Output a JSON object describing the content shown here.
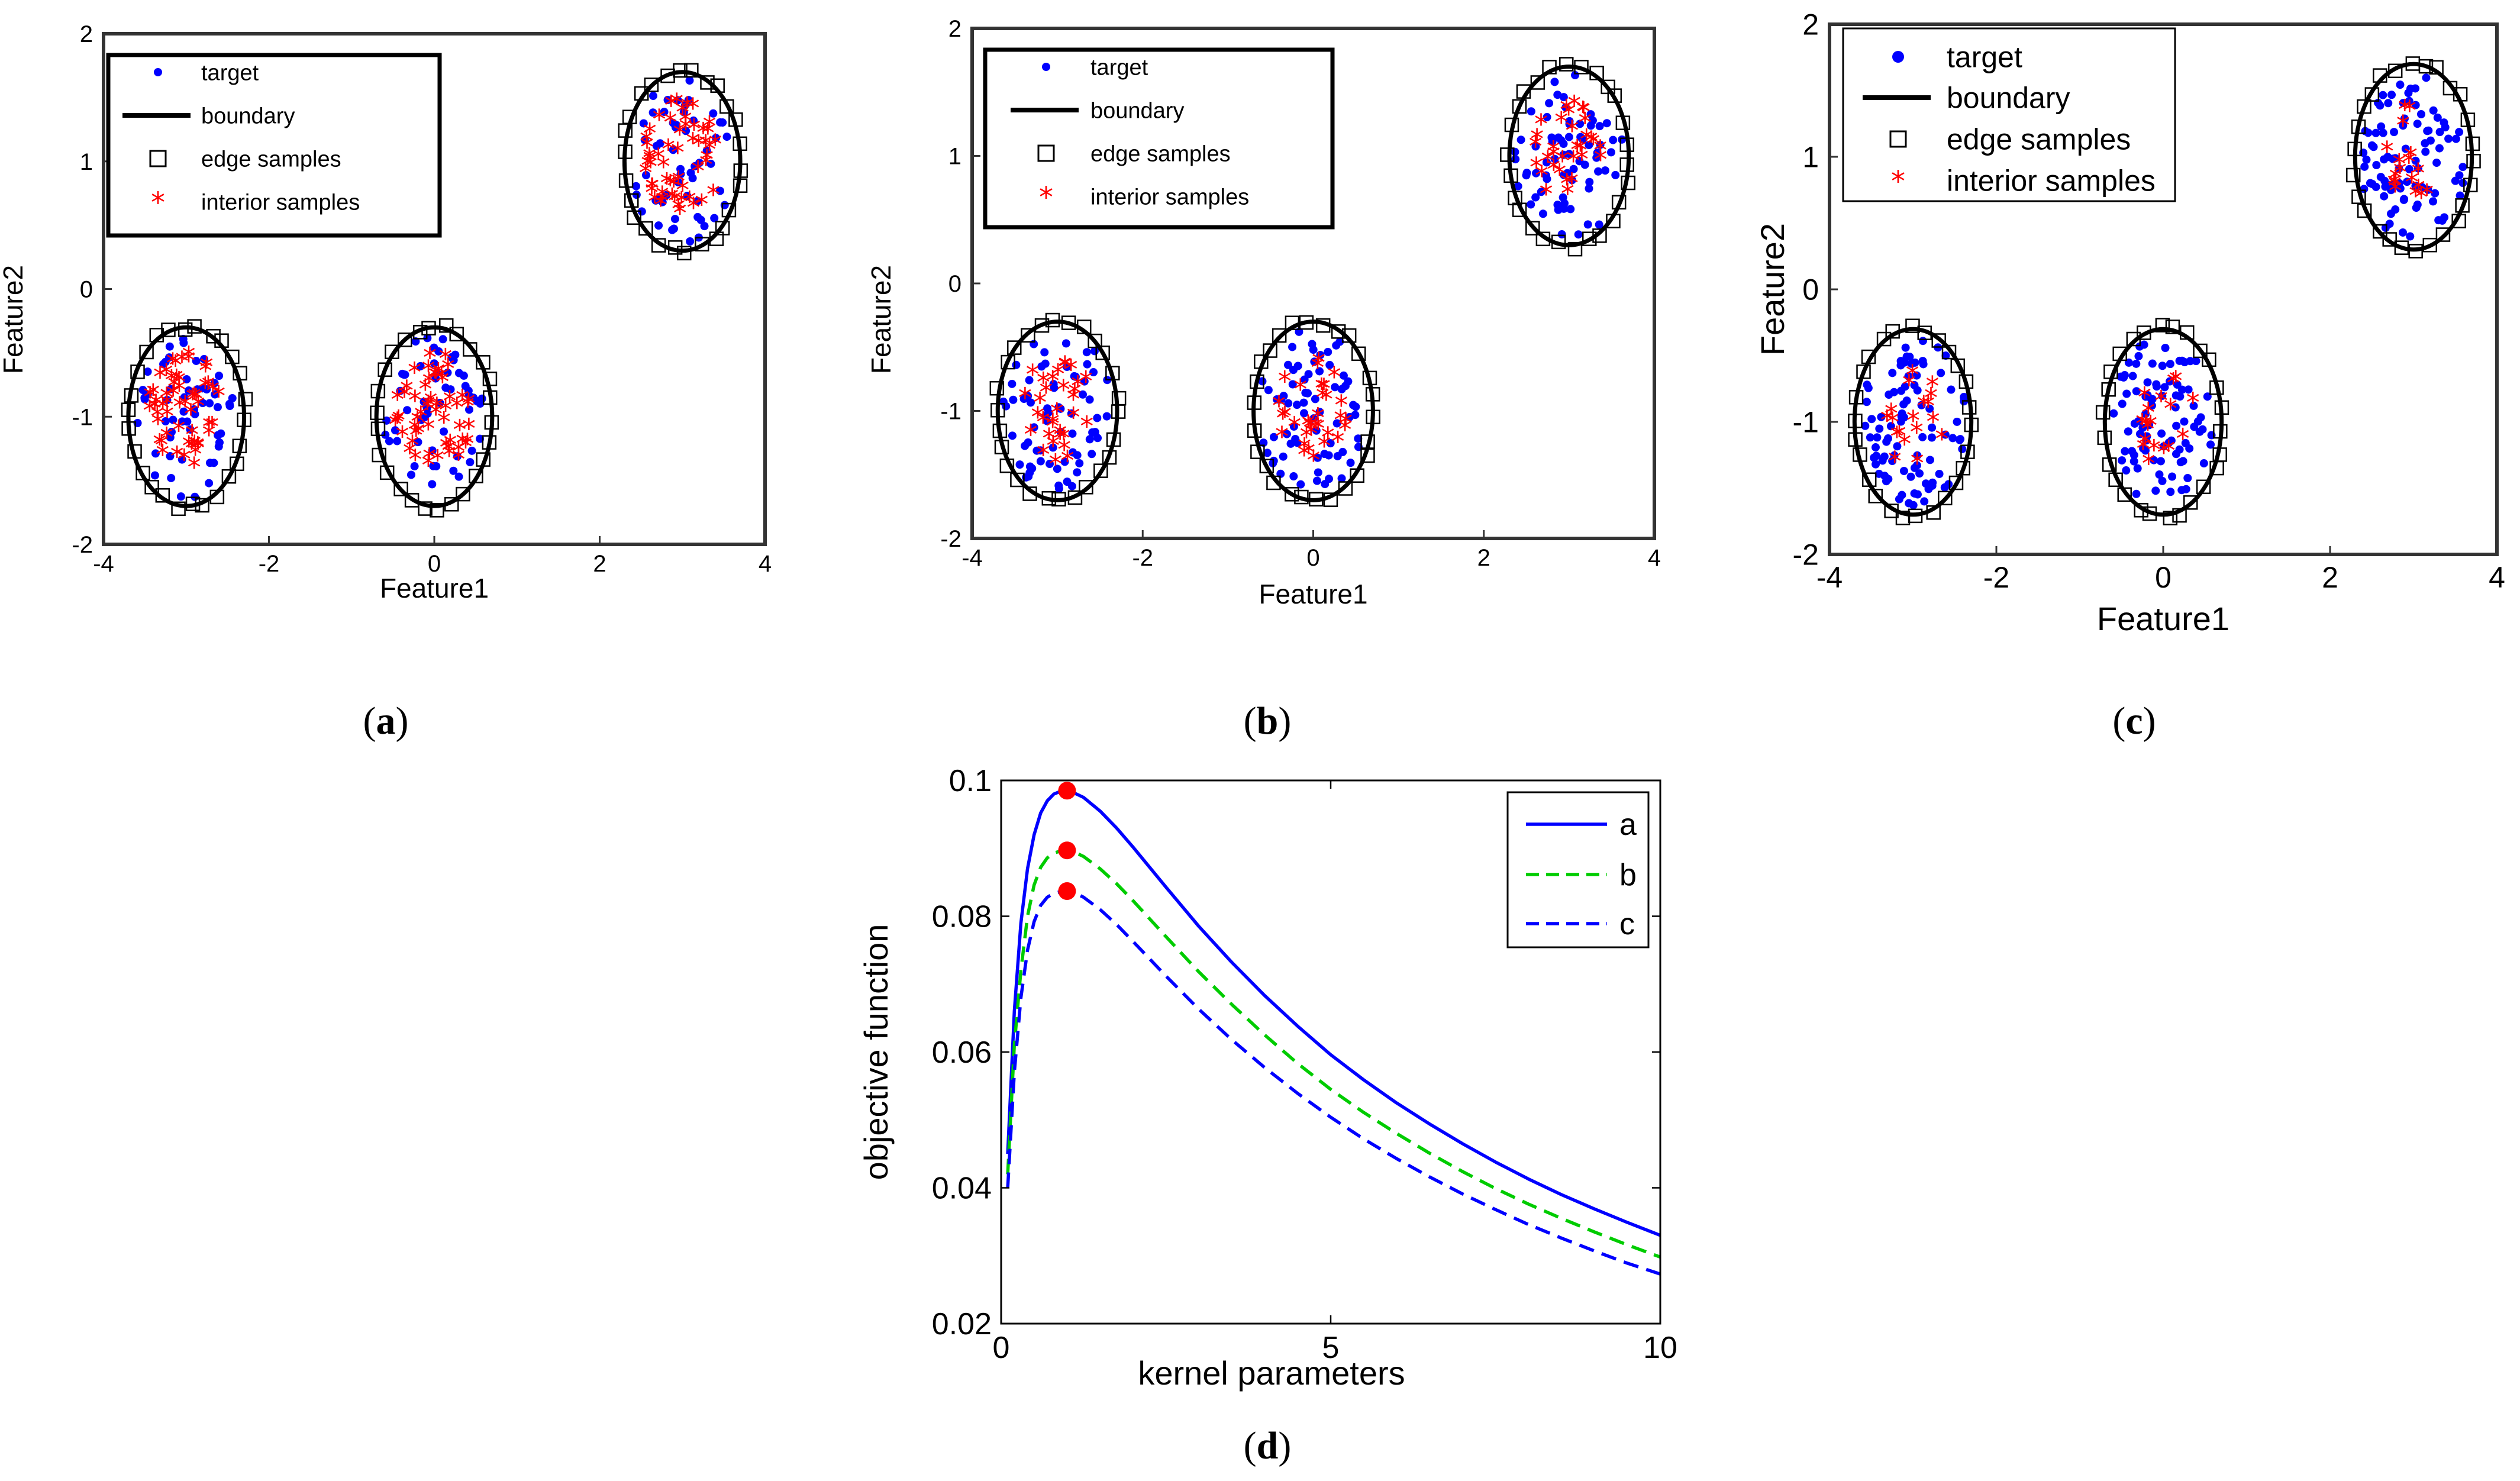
{
  "chart_data": [
    {
      "id": "a",
      "type": "scatter",
      "caption_letter": "a",
      "xlabel": "Feature1",
      "ylabel": "Feature2",
      "xlim": [
        -4,
        4
      ],
      "ylim": [
        -2,
        2
      ],
      "xticks": [
        -4,
        -2,
        0,
        2,
        4
      ],
      "yticks": [
        -2,
        -1,
        0,
        1,
        2
      ],
      "xtick_labels": [
        "-4",
        "-2",
        "0",
        "2",
        "4"
      ],
      "ytick_labels": [
        "-2",
        "-1",
        "0",
        "1",
        "2"
      ],
      "legend": [
        "target",
        "boundary",
        "edge samples",
        "interior samples"
      ],
      "legend_position": "top-left",
      "clusters": [
        {
          "cx": -3,
          "cy": -1,
          "rx": 0.7,
          "ry": 0.7
        },
        {
          "cx": 0,
          "cy": -1,
          "rx": 0.7,
          "ry": 0.7
        },
        {
          "cx": 3,
          "cy": 1,
          "rx": 0.7,
          "ry": 0.7
        }
      ],
      "n_target_per_cluster": 55,
      "n_edge_per_cluster": 26,
      "n_interior_per_cluster": 55,
      "interior_spread": 0.68
    },
    {
      "id": "b",
      "type": "scatter",
      "caption_letter": "b",
      "xlabel": "Feature1",
      "ylabel": "Feature2",
      "xlim": [
        -4,
        4
      ],
      "ylim": [
        -2,
        2
      ],
      "xticks": [
        -4,
        -2,
        0,
        2,
        4
      ],
      "yticks": [
        -2,
        -1,
        0,
        1,
        2
      ],
      "xtick_labels": [
        "-4",
        "-2",
        "0",
        "2",
        "4"
      ],
      "ytick_labels": [
        "-2",
        "-1",
        "0",
        "1",
        "2"
      ],
      "legend": [
        "target",
        "boundary",
        "edge samples",
        "interior samples"
      ],
      "legend_position": "top-left",
      "clusters": [
        {
          "cx": -3,
          "cy": -1,
          "rx": 0.7,
          "ry": 0.7
        },
        {
          "cx": 0,
          "cy": -1,
          "rx": 0.7,
          "ry": 0.7
        },
        {
          "cx": 3,
          "cy": 1,
          "rx": 0.7,
          "ry": 0.7
        }
      ],
      "n_target_per_cluster": 70,
      "n_edge_per_cluster": 26,
      "n_interior_per_cluster": 32,
      "interior_spread": 0.6
    },
    {
      "id": "c",
      "type": "scatter",
      "caption_letter": "c",
      "xlabel": "Feature1",
      "ylabel": "Feature2",
      "xlim": [
        -4,
        4
      ],
      "ylim": [
        -2,
        2
      ],
      "xticks": [
        -4,
        -2,
        0,
        2,
        4
      ],
      "yticks": [
        -2,
        -1,
        0,
        1,
        2
      ],
      "xtick_labels": [
        "-4",
        "-2",
        "0",
        "2",
        "4"
      ],
      "ytick_labels": [
        "-2",
        "-1",
        "0",
        "1",
        "2"
      ],
      "legend": [
        "target",
        "boundary",
        "edge samples",
        "interior samples"
      ],
      "legend_position": "top-left",
      "clusters": [
        {
          "cx": -3,
          "cy": -1,
          "rx": 0.7,
          "ry": 0.7
        },
        {
          "cx": 0,
          "cy": -1,
          "rx": 0.7,
          "ry": 0.7
        },
        {
          "cx": 3,
          "cy": 1,
          "rx": 0.7,
          "ry": 0.7
        }
      ],
      "n_target_per_cluster": 90,
      "n_edge_per_cluster": 26,
      "n_interior_per_cluster": 18,
      "interior_spread": 0.55
    },
    {
      "id": "d",
      "type": "line",
      "caption_letter": "d",
      "xlabel": "kernel parameters",
      "ylabel": "objective function",
      "xlim": [
        0,
        10
      ],
      "ylim": [
        0.02,
        0.1
      ],
      "xticks": [
        0,
        5,
        10
      ],
      "yticks": [
        0.02,
        0.04,
        0.06,
        0.08,
        0.1
      ],
      "xtick_labels": [
        "0",
        "5",
        "10"
      ],
      "ytick_labels": [
        "0.02",
        "0.04",
        "0.06",
        "0.08",
        "0.1"
      ],
      "legend_position": "top-right",
      "x": [
        0.1,
        0.2,
        0.3,
        0.4,
        0.5,
        0.6,
        0.7,
        0.8,
        0.9,
        1.0,
        1.1,
        1.25,
        1.5,
        1.75,
        2.0,
        2.5,
        3.0,
        3.5,
        4.0,
        4.5,
        5.0,
        5.5,
        6.0,
        6.5,
        7.0,
        7.5,
        8.0,
        8.5,
        9.0,
        9.5,
        10.0
      ],
      "series": [
        {
          "name": "a",
          "color": "#0000ff",
          "dash": "solid",
          "values": [
            0.045,
            0.066,
            0.079,
            0.087,
            0.092,
            0.0952,
            0.097,
            0.098,
            0.0984,
            0.0985,
            0.0982,
            0.0975,
            0.0955,
            0.093,
            0.0902,
            0.0843,
            0.0785,
            0.0732,
            0.0683,
            0.0638,
            0.0596,
            0.0559,
            0.0525,
            0.0494,
            0.0465,
            0.0438,
            0.0413,
            0.039,
            0.0369,
            0.0349,
            0.033
          ]
        },
        {
          "name": "b",
          "color": "#00cc00",
          "dash": "dashed",
          "values": [
            0.042,
            0.061,
            0.072,
            0.08,
            0.0846,
            0.0872,
            0.0886,
            0.0893,
            0.0896,
            0.0897,
            0.0895,
            0.0888,
            0.087,
            0.0848,
            0.0823,
            0.077,
            0.0718,
            0.067,
            0.0625,
            0.0583,
            0.0545,
            0.0511,
            0.048,
            0.0451,
            0.0424,
            0.0399,
            0.0376,
            0.0355,
            0.0335,
            0.0316,
            0.0298
          ]
        },
        {
          "name": "c",
          "color": "#0000ff",
          "dash": "dashed",
          "values": [
            0.04,
            0.057,
            0.068,
            0.075,
            0.0792,
            0.0816,
            0.0828,
            0.0834,
            0.0836,
            0.0837,
            0.0835,
            0.0828,
            0.081,
            0.0788,
            0.0763,
            0.0712,
            0.0663,
            0.0618,
            0.0577,
            0.0539,
            0.0504,
            0.0472,
            0.0443,
            0.0416,
            0.0391,
            0.0368,
            0.0346,
            0.0326,
            0.0307,
            0.0289,
            0.0273
          ]
        }
      ],
      "optimum_markers": [
        {
          "x": 1.0,
          "y": 0.0985,
          "color": "#ff0000"
        },
        {
          "x": 1.0,
          "y": 0.0897,
          "color": "#ff0000"
        },
        {
          "x": 1.0,
          "y": 0.0837,
          "color": "#ff0000"
        }
      ]
    }
  ],
  "colors": {
    "target": "#0000ff",
    "boundary": "#000000",
    "edge": "#000000",
    "interior": "#ff0000"
  }
}
